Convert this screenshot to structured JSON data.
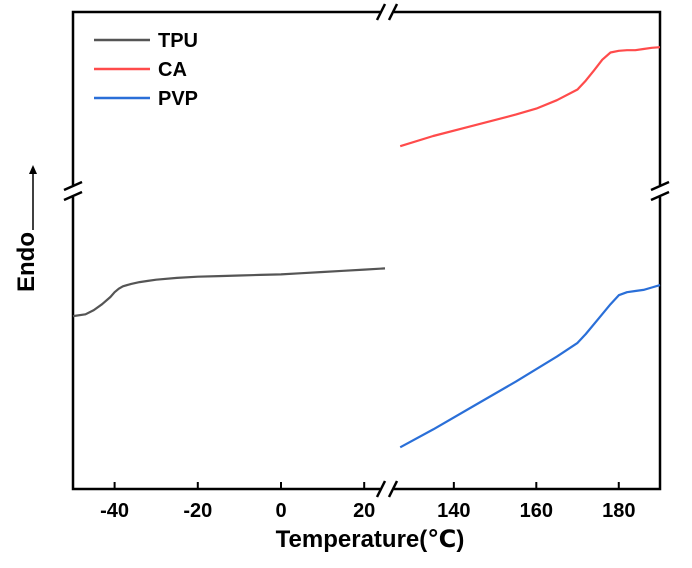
{
  "chart_data": {
    "type": "line",
    "title": "",
    "xlabel": "Temperature(℃)",
    "ylabel": "Endo",
    "y_units_shown": false,
    "x_axis_break": {
      "between": [
        25,
        125
      ]
    },
    "y_axis_break": true,
    "xlim_left": [
      -50,
      25
    ],
    "xlim_right": [
      125,
      190
    ],
    "x_ticks_left": [
      -40,
      -20,
      0,
      20
    ],
    "x_tick_labels_left": [
      "-40",
      "-20",
      "0",
      "20"
    ],
    "x_ticks_right": [
      140,
      160,
      180
    ],
    "x_tick_labels_right": [
      "140",
      "160",
      "180"
    ],
    "legend_position": "top-left",
    "grid": false,
    "series": [
      {
        "name": "TPU",
        "color": "#555555",
        "x": [
          -50,
          -47,
          -45,
          -43,
          -41,
          -40,
          -39,
          -38,
          -36,
          -34,
          -32,
          -30,
          -25,
          -20,
          -15,
          -10,
          -5,
          0,
          5,
          10,
          15,
          20,
          25
        ],
        "y": [
          -0.6,
          -0.57,
          -0.5,
          -0.4,
          -0.28,
          -0.2,
          -0.14,
          -0.1,
          -0.06,
          -0.03,
          -0.01,
          0.01,
          0.04,
          0.06,
          0.07,
          0.08,
          0.09,
          0.1,
          0.12,
          0.14,
          0.16,
          0.18,
          0.2
        ]
      },
      {
        "name": "CA",
        "color": "#ff4b4b",
        "x": [
          127,
          135,
          145,
          155,
          160,
          165,
          170,
          172,
          174,
          176,
          178,
          180,
          182,
          184,
          186,
          188,
          190
        ],
        "y": [
          2.25,
          2.42,
          2.6,
          2.78,
          2.88,
          3.02,
          3.2,
          3.35,
          3.52,
          3.7,
          3.82,
          3.85,
          3.86,
          3.86,
          3.88,
          3.9,
          3.91
        ]
      },
      {
        "name": "PVP",
        "color": "#2a6fd8",
        "x": [
          127,
          135,
          145,
          155,
          165,
          170,
          172,
          175,
          178,
          180,
          182,
          184,
          186,
          188,
          190
        ],
        "y": [
          -2.8,
          -2.5,
          -2.1,
          -1.7,
          -1.28,
          -1.05,
          -0.9,
          -0.65,
          -0.4,
          -0.25,
          -0.2,
          -0.18,
          -0.16,
          -0.12,
          -0.08
        ]
      }
    ]
  }
}
